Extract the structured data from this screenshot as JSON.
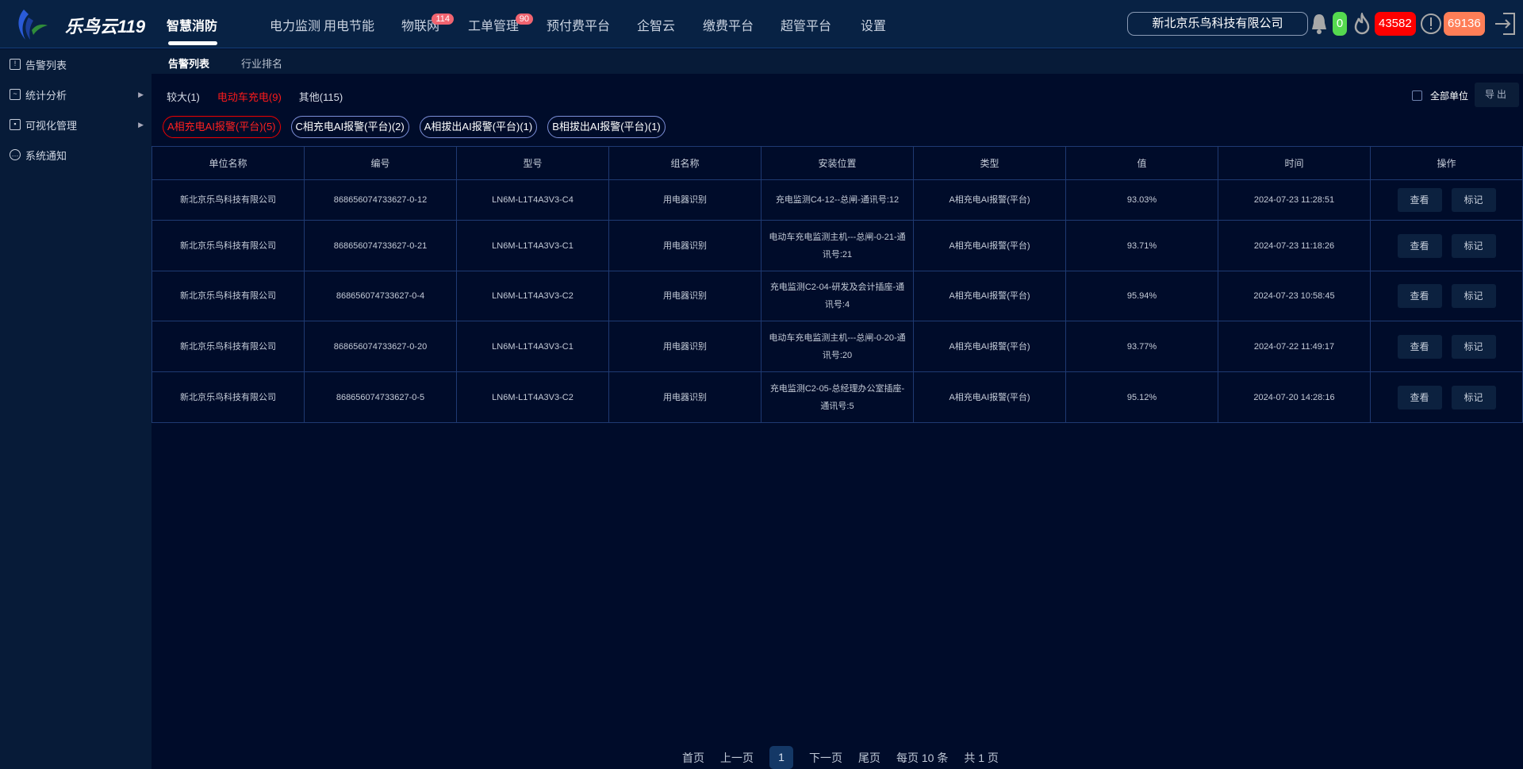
{
  "header": {
    "brand": "乐鸟云119",
    "nav": [
      {
        "label": "智慧消防",
        "active": true
      },
      {
        "label": "电力监测"
      },
      {
        "label": "用电节能"
      },
      {
        "label": "物联网",
        "badge": "114"
      },
      {
        "label": "工单管理",
        "badge": "90"
      },
      {
        "label": "预付费平台"
      },
      {
        "label": "企智云"
      },
      {
        "label": "缴费平台"
      },
      {
        "label": "超管平台"
      },
      {
        "label": "设置"
      }
    ],
    "company": "新北京乐鸟科技有限公司",
    "bell_count": "0",
    "fire_count": "43582",
    "warning_count": "69136",
    "colors": {
      "bell": "#55d94f",
      "fire": "#ff0000",
      "warning": "#ff7e57"
    }
  },
  "sidebar": {
    "items": [
      {
        "label": "告警列表",
        "icon": "alarm-list-icon"
      },
      {
        "label": "统计分析",
        "icon": "chart-icon",
        "expandable": true
      },
      {
        "label": "可视化管理",
        "icon": "monitor-icon",
        "expandable": true
      },
      {
        "label": "系统通知",
        "icon": "message-icon"
      }
    ]
  },
  "subtabs": [
    {
      "label": "告警列表",
      "active": true
    },
    {
      "label": "行业排名"
    }
  ],
  "filters": [
    {
      "label": "较大(1)"
    },
    {
      "label": "电动车充电(9)",
      "active": true
    },
    {
      "label": "其他(115)"
    }
  ],
  "chips": [
    {
      "label": "A相充电AI报警(平台)(5)",
      "active": true
    },
    {
      "label": "C相充电AI报警(平台)(2)"
    },
    {
      "label": "A相拔出AI报警(平台)(1)"
    },
    {
      "label": "B相拔出AI报警(平台)(1)"
    }
  ],
  "all_units_label": "全部单位",
  "export_label": "导出",
  "table": {
    "columns": [
      "单位名称",
      "编号",
      "型号",
      "组名称",
      "安装位置",
      "类型",
      "值",
      "时间",
      "操作"
    ],
    "rows": [
      [
        "新北京乐鸟科技有限公司",
        "868656074733627-0-12",
        "LN6M-L1T4A3V3-C4",
        "用电器识别",
        "充电监测C4-12--总闸-通讯号:12",
        "A相充电AI报警(平台)",
        "93.03%",
        "2024-07-23 11:28:51"
      ],
      [
        "新北京乐鸟科技有限公司",
        "868656074733627-0-21",
        "LN6M-L1T4A3V3-C1",
        "用电器识别",
        "电动车充电监测主机---总闸-0-21-通讯号:21",
        "A相充电AI报警(平台)",
        "93.71%",
        "2024-07-23 11:18:26"
      ],
      [
        "新北京乐鸟科技有限公司",
        "868656074733627-0-4",
        "LN6M-L1T4A3V3-C2",
        "用电器识别",
        "充电监测C2-04-研发及会计插座-通讯号:4",
        "A相充电AI报警(平台)",
        "95.94%",
        "2024-07-23 10:58:45"
      ],
      [
        "新北京乐鸟科技有限公司",
        "868656074733627-0-20",
        "LN6M-L1T4A3V3-C1",
        "用电器识别",
        "电动车充电监测主机---总闸-0-20-通讯号:20",
        "A相充电AI报警(平台)",
        "93.77%",
        "2024-07-22 11:49:17"
      ],
      [
        "新北京乐鸟科技有限公司",
        "868656074733627-0-5",
        "LN6M-L1T4A3V3-C2",
        "用电器识别",
        "充电监测C2-05-总经理办公室插座-通讯号:5",
        "A相充电AI报警(平台)",
        "95.12%",
        "2024-07-20 14:28:16"
      ]
    ],
    "view_label": "查看",
    "mark_label": "标记"
  },
  "pager": {
    "first": "首页",
    "prev": "上一页",
    "current": "1",
    "next": "下一页",
    "last": "尾页",
    "per_page": "每页 10 条",
    "total": "共 1 页"
  }
}
